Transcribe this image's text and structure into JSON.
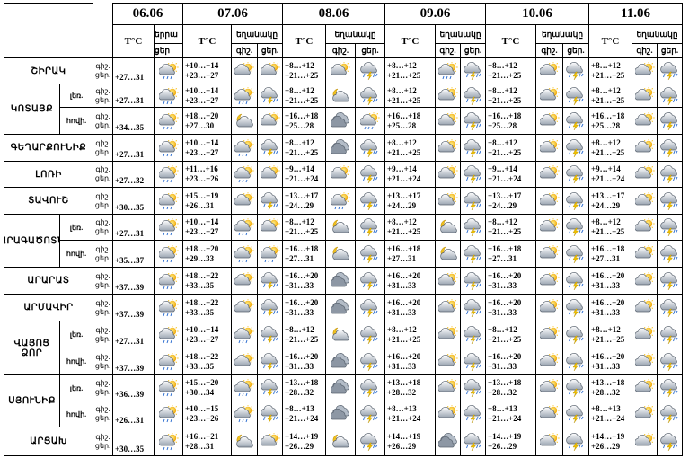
{
  "dates": [
    "06.06",
    "07.06",
    "08.06",
    "09.06",
    "10.06",
    "11.06"
  ],
  "temp_header": "T°C",
  "weather_header_clipped": "երրա",
  "weather_header": "եղանակը",
  "night_label": "գիշ.",
  "day_label": "ցեր.",
  "night_label_clipped": "գիշ",
  "day_label_clipped": "ցեր",
  "row_labels": {
    "night": "գիշ.",
    "day": "ցեր."
  },
  "regions": [
    {
      "name": "ՇԻՐԱԿ",
      "subs": null
    },
    {
      "name": "ԿՈՏԱՅՔ",
      "subs": [
        "լեռ.",
        "հովի."
      ]
    },
    {
      "name": "ԳԵՂԱՐՔՈՒՆԻՔ",
      "subs": null
    },
    {
      "name": "ԼՈՌԻ",
      "subs": null
    },
    {
      "name": "ՏԱՎՈՒՇ",
      "subs": null
    },
    {
      "name": "ԱՐԱԳԱԾՈՏՆ",
      "subs": [
        "լեռ.",
        "հովի."
      ]
    },
    {
      "name": "ԱՐԱՐԱՏ",
      "subs": null
    },
    {
      "name": "ԱՐՄԱՎԻՐ",
      "subs": null
    },
    {
      "name": "ՎԱՅՈՑ ՁՈՐ",
      "subs": [
        "լեռ.",
        "հովի."
      ]
    },
    {
      "name": "ՍՅՈՒՆԻՔ",
      "subs": [
        "լեռ.",
        "հովի."
      ]
    },
    {
      "name": "ԱՐՑԱԽ",
      "subs": null
    }
  ],
  "rows": [
    {
      "d0": "+27…31",
      "t": [
        [
          "+10…+14",
          "+23…+27"
        ],
        [
          "+8…+12",
          "+21…+25"
        ],
        [
          "+8…+12",
          "+21…+25"
        ],
        [
          "+8…+12",
          "+21…+25"
        ],
        [
          "+8…+12",
          "+21…+25"
        ]
      ],
      "i": [
        [
          "pc",
          "pc"
        ],
        [
          "pc",
          "st"
        ],
        [
          "pcs",
          "st"
        ],
        [
          "pc",
          "st"
        ],
        [
          "pc",
          "st"
        ]
      ]
    },
    {
      "d0": "+27…31",
      "t": [
        [
          "+10…+14",
          "+23…+27"
        ],
        [
          "+8…+12",
          "+21…+25"
        ],
        [
          "+8…+12",
          "+21…+25"
        ],
        [
          "+8…+12",
          "+21…+25"
        ],
        [
          "+8…+12",
          "+21…+25"
        ]
      ],
      "i": [
        [
          "pcs",
          "st"
        ],
        [
          "pcm",
          "st"
        ],
        [
          "pc",
          "st"
        ],
        [
          "pc",
          "st"
        ],
        [
          "pc",
          "st"
        ]
      ]
    },
    {
      "d0": "+34…35",
      "t": [
        [
          "+18…+20",
          "+27…30"
        ],
        [
          "+16…+18",
          "+25…28"
        ],
        [
          "+16…+18",
          "+25…28"
        ],
        [
          "+16…+18",
          "+25…28"
        ],
        [
          "+16…+18",
          "+25…28"
        ]
      ],
      "i": [
        [
          "pcm",
          "pc"
        ],
        [
          "cl",
          "pcs"
        ],
        [
          "pc",
          "st"
        ],
        [
          "pc",
          "st"
        ],
        [
          "pc",
          "st"
        ]
      ]
    },
    {
      "d0": "+27…31",
      "t": [
        [
          "+10…+14",
          "+23…+27"
        ],
        [
          "+8…+12",
          "+21…+25"
        ],
        [
          "+8…+12",
          "+21…+25"
        ],
        [
          "+8…+12",
          "+21…+25"
        ],
        [
          "+8…+12",
          "+21…+25"
        ]
      ],
      "i": [
        [
          "pcs",
          "st"
        ],
        [
          "cl",
          "st"
        ],
        [
          "pc",
          "st"
        ],
        [
          "pc",
          "st"
        ],
        [
          "pc",
          "st"
        ]
      ]
    },
    {
      "d0": "+27…32",
      "t": [
        [
          "+11…+16",
          "+23…+26"
        ],
        [
          "+9…+14",
          "+21…+24"
        ],
        [
          "+9…+14",
          "+21…+24"
        ],
        [
          "+9…+14",
          "+21…+24"
        ],
        [
          "+9…+14",
          "+21…+24"
        ]
      ],
      "i": [
        [
          "pcs",
          "pc"
        ],
        [
          "pc",
          "st"
        ],
        [
          "pc",
          "st"
        ],
        [
          "pc",
          "st"
        ],
        [
          "pc",
          "st"
        ]
      ]
    },
    {
      "d0": "+30…35",
      "t": [
        [
          "+15…+19",
          "+26…31"
        ],
        [
          "+13…+17",
          "+24…29"
        ],
        [
          "+13…+17",
          "+24…29"
        ],
        [
          "+13…+17",
          "+24…29"
        ],
        [
          "+13…+17",
          "+24…29"
        ]
      ],
      "i": [
        [
          "pc",
          "st"
        ],
        [
          "pcs",
          "st"
        ],
        [
          "pc",
          "st"
        ],
        [
          "pc",
          "st"
        ],
        [
          "pc",
          "st"
        ]
      ]
    },
    {
      "d0": "+27…31",
      "t": [
        [
          "+10…+14",
          "+23…+27"
        ],
        [
          "+8…+12",
          "+21…+25"
        ],
        [
          "+8…+12",
          "+21…+25"
        ],
        [
          "+8…+12",
          "+21…+25"
        ],
        [
          "+8…+12",
          "+21…+25"
        ]
      ],
      "i": [
        [
          "pcs",
          "pc"
        ],
        [
          "pcm",
          "st"
        ],
        [
          "pcm",
          "st"
        ],
        [
          "pc",
          "st"
        ],
        [
          "pc",
          "st"
        ]
      ]
    },
    {
      "d0": "+35…37",
      "t": [
        [
          "+18…+20",
          "+29…33"
        ],
        [
          "+16…+18",
          "+27…31"
        ],
        [
          "+16…+18",
          "+27…31"
        ],
        [
          "+16…+18",
          "+27…31"
        ],
        [
          "+16…+18",
          "+27…31"
        ]
      ],
      "i": [
        [
          "pcs",
          "pcs"
        ],
        [
          "pcm",
          "st"
        ],
        [
          "pcm",
          "st"
        ],
        [
          "pc",
          "st"
        ],
        [
          "pc",
          "st"
        ]
      ]
    },
    {
      "d0": "+37…39",
      "t": [
        [
          "+18…+22",
          "+33…35"
        ],
        [
          "+16…+20",
          "+31…33"
        ],
        [
          "+16…+20",
          "+31…33"
        ],
        [
          "+16…+20",
          "+31…33"
        ],
        [
          "+16…+20",
          "+31…33"
        ]
      ],
      "i": [
        [
          "pc",
          "st"
        ],
        [
          "cl",
          "st"
        ],
        [
          "pc",
          "st"
        ],
        [
          "pc",
          "st"
        ],
        [
          "pc",
          "st"
        ]
      ]
    },
    {
      "d0": "+37…39",
      "t": [
        [
          "+18…+22",
          "+33…35"
        ],
        [
          "+16…+20",
          "+31…33"
        ],
        [
          "+16…+20",
          "+31…33"
        ],
        [
          "+16…+20",
          "+31…33"
        ],
        [
          "+16…+20",
          "+31…33"
        ]
      ],
      "i": [
        [
          "pc",
          "st"
        ],
        [
          "cl",
          "st"
        ],
        [
          "pc",
          "st"
        ],
        [
          "pc",
          "st"
        ],
        [
          "pc",
          "st"
        ]
      ]
    },
    {
      "d0": "+27…31",
      "t": [
        [
          "+10…+14",
          "+23…+27"
        ],
        [
          "+8…+12",
          "+21…+25"
        ],
        [
          "+8…+12",
          "+21…+25"
        ],
        [
          "+8…+12",
          "+21…+25"
        ],
        [
          "+8…+12",
          "+21…+25"
        ]
      ],
      "i": [
        [
          "pcs",
          "st"
        ],
        [
          "pcm",
          "st"
        ],
        [
          "pc",
          "st"
        ],
        [
          "pc",
          "st"
        ],
        [
          "pc",
          "st"
        ]
      ]
    },
    {
      "d0": "+37…39",
      "t": [
        [
          "+18…+22",
          "+33…35"
        ],
        [
          "+16…+20",
          "+31…33"
        ],
        [
          "+16…+20",
          "+31…33"
        ],
        [
          "+16…+20",
          "+31…33"
        ],
        [
          "+16…+20",
          "+31…33"
        ]
      ],
      "i": [
        [
          "pc",
          "st"
        ],
        [
          "cl",
          "st"
        ],
        [
          "pc",
          "st"
        ],
        [
          "pc",
          "st"
        ],
        [
          "pc",
          "st"
        ]
      ]
    },
    {
      "d0": "+36…39",
      "t": [
        [
          "+15…+20",
          "+30…34"
        ],
        [
          "+13…+18",
          "+28…32"
        ],
        [
          "+13…+18",
          "+28…32"
        ],
        [
          "+13…+18",
          "+28…32"
        ],
        [
          "+13…+18",
          "+28…32"
        ]
      ],
      "i": [
        [
          "pcs",
          "st"
        ],
        [
          "cl",
          "st"
        ],
        [
          "pc",
          "st"
        ],
        [
          "pc",
          "st"
        ],
        [
          "pc",
          "st"
        ]
      ]
    },
    {
      "d0": "+26…31",
      "t": [
        [
          "+10…+15",
          "+23…+26"
        ],
        [
          "+8…+13",
          "+21…+24"
        ],
        [
          "+8…+13",
          "+21…+24"
        ],
        [
          "+8…+13",
          "+21…+24"
        ],
        [
          "+8…+13",
          "+21…+24"
        ]
      ],
      "i": [
        [
          "pcs",
          "st"
        ],
        [
          "cl",
          "st"
        ],
        [
          "pc",
          "st"
        ],
        [
          "pc",
          "st"
        ],
        [
          "pc",
          "st"
        ]
      ]
    },
    {
      "d0": "+30…35",
      "t": [
        [
          "+16…+21",
          "+28…31"
        ],
        [
          "+14…+19",
          "+26…29"
        ],
        [
          "+14…+19",
          "+26…29"
        ],
        [
          "+14…+19",
          "+26…29"
        ],
        [
          "+14…+19",
          "+26…29"
        ]
      ],
      "i": [
        [
          "pcm",
          "pc"
        ],
        [
          "pcm",
          "st"
        ],
        [
          "cl",
          "st"
        ],
        [
          "pc",
          "st"
        ],
        [
          "pc",
          "st"
        ]
      ]
    }
  ],
  "colors": {
    "border": "#000000",
    "sun": "#f5b800",
    "cloud_light": "#e7ecf2",
    "cloud_dark": "#7d8896",
    "rain": "#2f6fd0",
    "bolt": "#f2c200",
    "moon": "#f0c020"
  }
}
